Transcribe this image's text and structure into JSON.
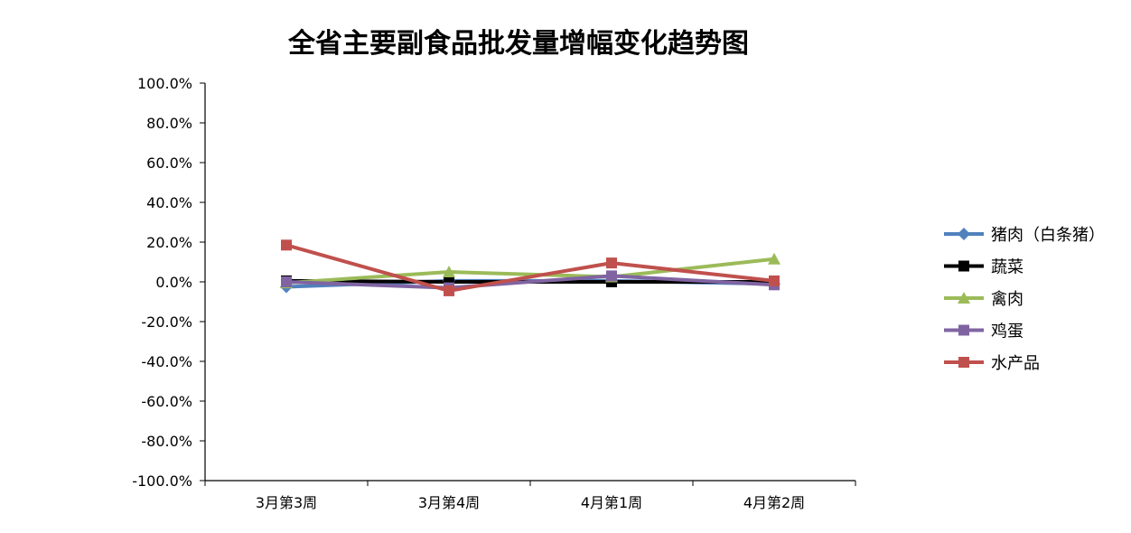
{
  "chart_data": {
    "type": "line",
    "title": "全省主要副食品批发量增幅变化趋势图",
    "xlabel": "",
    "ylabel": "",
    "categories": [
      "3月第3周",
      "3月第4周",
      "4月第1周",
      "4月第2周"
    ],
    "ylim": [
      -100,
      100
    ],
    "yticks": [
      100,
      80,
      60,
      40,
      20,
      0,
      -20,
      -40,
      -60,
      -80,
      -100
    ],
    "ytick_labels": [
      "100.0%",
      "80.0%",
      "60.0%",
      "40.0%",
      "20.0%",
      "0.0%",
      "-20.0%",
      "-40.0%",
      "-60.0%",
      "-80.0%",
      "-100.0%"
    ],
    "legend_position": "right",
    "grid": false,
    "series": [
      {
        "name": "猪肉（白条猪）",
        "color": "#4f81bd",
        "marker": "diamond",
        "values": [
          -2.5,
          0.5,
          0.5,
          -1.0
        ]
      },
      {
        "name": "蔬菜",
        "color": "#000000",
        "marker": "square",
        "values": [
          0.5,
          0.0,
          0.0,
          0.0
        ]
      },
      {
        "name": "禽肉",
        "color": "#9bbb59",
        "marker": "triangle",
        "values": [
          -0.5,
          5.0,
          2.5,
          11.5
        ]
      },
      {
        "name": "鸡蛋",
        "color": "#8064a2",
        "marker": "square",
        "values": [
          0.0,
          -3.0,
          3.0,
          -1.5
        ]
      },
      {
        "name": "水产品",
        "color": "#c0504d",
        "marker": "square",
        "values": [
          18.5,
          -4.5,
          9.5,
          0.5
        ]
      }
    ]
  }
}
